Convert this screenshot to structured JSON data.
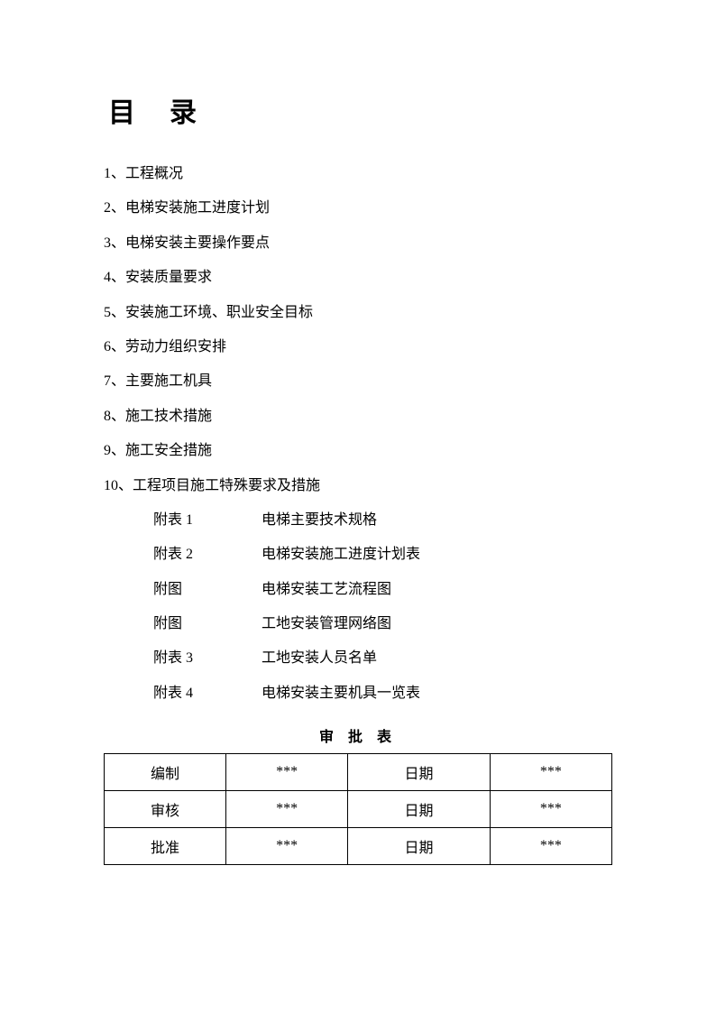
{
  "title": "目录",
  "toc": [
    "1、工程概况",
    "2、电梯安装施工进度计划",
    "3、电梯安装主要操作要点",
    "4、安装质量要求",
    "5、安装施工环境、职业安全目标",
    "6、劳动力组织安排",
    "7、主要施工机具",
    "8、施工技术措施",
    "9、施工安全措施",
    "10、工程项目施工特殊要求及措施"
  ],
  "appendices": [
    {
      "label": "附表 1",
      "desc": "电梯主要技术规格"
    },
    {
      "label": "附表 2",
      "desc": "电梯安装施工进度计划表"
    },
    {
      "label": "附图",
      "desc": "电梯安装工艺流程图"
    },
    {
      "label": "附图",
      "desc": "工地安装管理网络图"
    },
    {
      "label": "附表 3",
      "desc": "工地安装人员名单"
    },
    {
      "label": "附表 4",
      "desc": "电梯安装主要机具一览表"
    }
  ],
  "approval": {
    "title": "审 批 表",
    "rows": [
      {
        "role": "编制",
        "name": "***",
        "dateLabel": "日期",
        "date": "***"
      },
      {
        "role": "审核",
        "name": "***",
        "dateLabel": "日期",
        "date": "***"
      },
      {
        "role": "批准",
        "name": "***",
        "dateLabel": "日期",
        "date": "***"
      }
    ]
  },
  "styling": {
    "pageWidth": 794,
    "pageHeight": 1123,
    "backgroundColor": "#ffffff",
    "textColor": "#000000",
    "titleFontSize": 30,
    "bodyFontSize": 16,
    "tableBorderColor": "#000000"
  }
}
